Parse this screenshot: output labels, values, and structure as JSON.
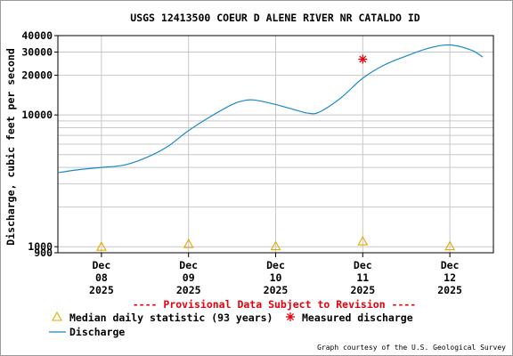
{
  "chart_data": {
    "type": "line",
    "title": "USGS 12413500 COEUR D ALENE RIVER NR CATALDO ID",
    "ylabel": "Discharge, cubic feet per second",
    "xlabel": "",
    "y_scale": "log",
    "ylim": [
      900,
      40000
    ],
    "xlim": [
      "2025-12-07 12:00",
      "2025-12-12 12:00"
    ],
    "grid": true,
    "y_ticks": [
      {
        "value": 900,
        "label": "900"
      },
      {
        "value": 1000,
        "label": "1000"
      },
      {
        "value": 10000,
        "label": "10000"
      },
      {
        "value": 20000,
        "label": "20000"
      },
      {
        "value": 30000,
        "label": "30000"
      },
      {
        "value": 40000,
        "label": "40000"
      }
    ],
    "x_ticks": [
      {
        "date": "2025-12-08",
        "line1": "Dec",
        "line2": "08",
        "line3": "2025"
      },
      {
        "date": "2025-12-09",
        "line1": "Dec",
        "line2": "09",
        "line3": "2025"
      },
      {
        "date": "2025-12-10",
        "line1": "Dec",
        "line2": "10",
        "line3": "2025"
      },
      {
        "date": "2025-12-11",
        "line1": "Dec",
        "line2": "11",
        "line3": "2025"
      },
      {
        "date": "2025-12-12",
        "line1": "Dec",
        "line2": "12",
        "line3": "2025"
      }
    ],
    "series": [
      {
        "name": "Discharge",
        "color": "#1a88c9",
        "points": [
          [
            "2025-12-07 12:00",
            3650
          ],
          [
            "2025-12-07 18:00",
            3850
          ],
          [
            "2025-12-08 00:00",
            4000
          ],
          [
            "2025-12-08 06:00",
            4150
          ],
          [
            "2025-12-08 12:00",
            4700
          ],
          [
            "2025-12-08 18:00",
            5700
          ],
          [
            "2025-12-09 00:00",
            7600
          ],
          [
            "2025-12-09 06:00",
            9700
          ],
          [
            "2025-12-09 12:00",
            12000
          ],
          [
            "2025-12-09 15:00",
            12800
          ],
          [
            "2025-12-09 18:00",
            13000
          ],
          [
            "2025-12-10 00:00",
            12000
          ],
          [
            "2025-12-10 06:00",
            10800
          ],
          [
            "2025-12-10 09:00",
            10300
          ],
          [
            "2025-12-10 12:00",
            10500
          ],
          [
            "2025-12-10 18:00",
            13500
          ],
          [
            "2025-12-11 00:00",
            19000
          ],
          [
            "2025-12-11 06:00",
            24000
          ],
          [
            "2025-12-11 12:00",
            28000
          ],
          [
            "2025-12-11 18:00",
            32000
          ],
          [
            "2025-12-12 00:00",
            34000
          ],
          [
            "2025-12-12 06:00",
            31000
          ],
          [
            "2025-12-12 09:00",
            27500
          ]
        ]
      },
      {
        "name": "Median daily statistic (93 years)",
        "color": "#e8a800",
        "marker": "triangle",
        "points": [
          [
            "2025-12-08 00:00",
            1000
          ],
          [
            "2025-12-09 00:00",
            1050
          ],
          [
            "2025-12-10 00:00",
            1010
          ],
          [
            "2025-12-11 00:00",
            1100
          ],
          [
            "2025-12-12 00:00",
            1010
          ]
        ]
      },
      {
        "name": "Measured discharge",
        "color": "#e8000d",
        "marker": "asterisk",
        "points": [
          [
            "2025-12-11 00:00",
            26500
          ]
        ]
      }
    ],
    "provisional_note": "---- Provisional Data Subject to Revision ----",
    "credit": "Graph courtesy of the U.S. Geological Survey"
  }
}
